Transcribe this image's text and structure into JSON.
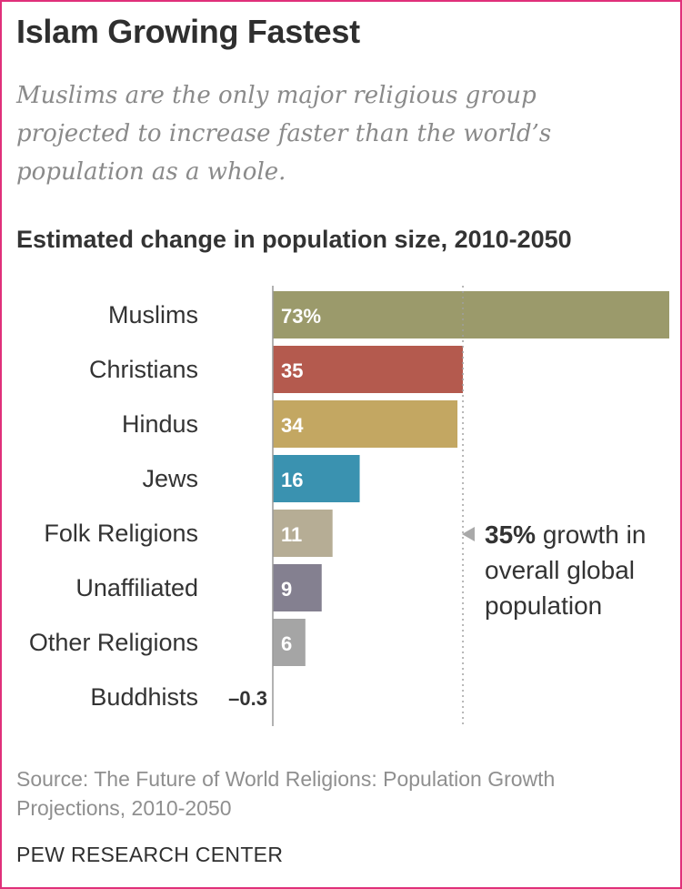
{
  "header": {
    "title": "Islam Growing Fastest",
    "subtitle": "Muslims are the only major religious group projected to increase faster than the world’s population as a whole."
  },
  "chart_heading": "Estimated change in population size, 2010-2050",
  "annotation": {
    "value_text": "35%",
    "rest_text": " growth in overall global population"
  },
  "footer": {
    "source": "Source: The Future of World Religions: Population Growth Projections, 2010-2050",
    "brand": "PEW RESEARCH CENTER"
  },
  "chart_data": {
    "type": "bar",
    "orientation": "horizontal",
    "categories": [
      "Muslims",
      "Christians",
      "Hindus",
      "Jews",
      "Folk Religions",
      "Unaffiliated",
      "Other Religions",
      "Buddhists"
    ],
    "values": [
      73,
      35,
      34,
      16,
      11,
      9,
      6,
      -0.3
    ],
    "value_labels": [
      "73%",
      "35",
      "34",
      "16",
      "11",
      "9",
      "6",
      "–0.3"
    ],
    "colors": [
      "#9b9a6b",
      "#b45a4e",
      "#c3a762",
      "#3a92b0",
      "#b6ad95",
      "#848090",
      "#a5a5a5",
      "#b0b0b0"
    ],
    "reference_line": {
      "value": 35
    },
    "xlim": [
      0,
      73
    ]
  }
}
